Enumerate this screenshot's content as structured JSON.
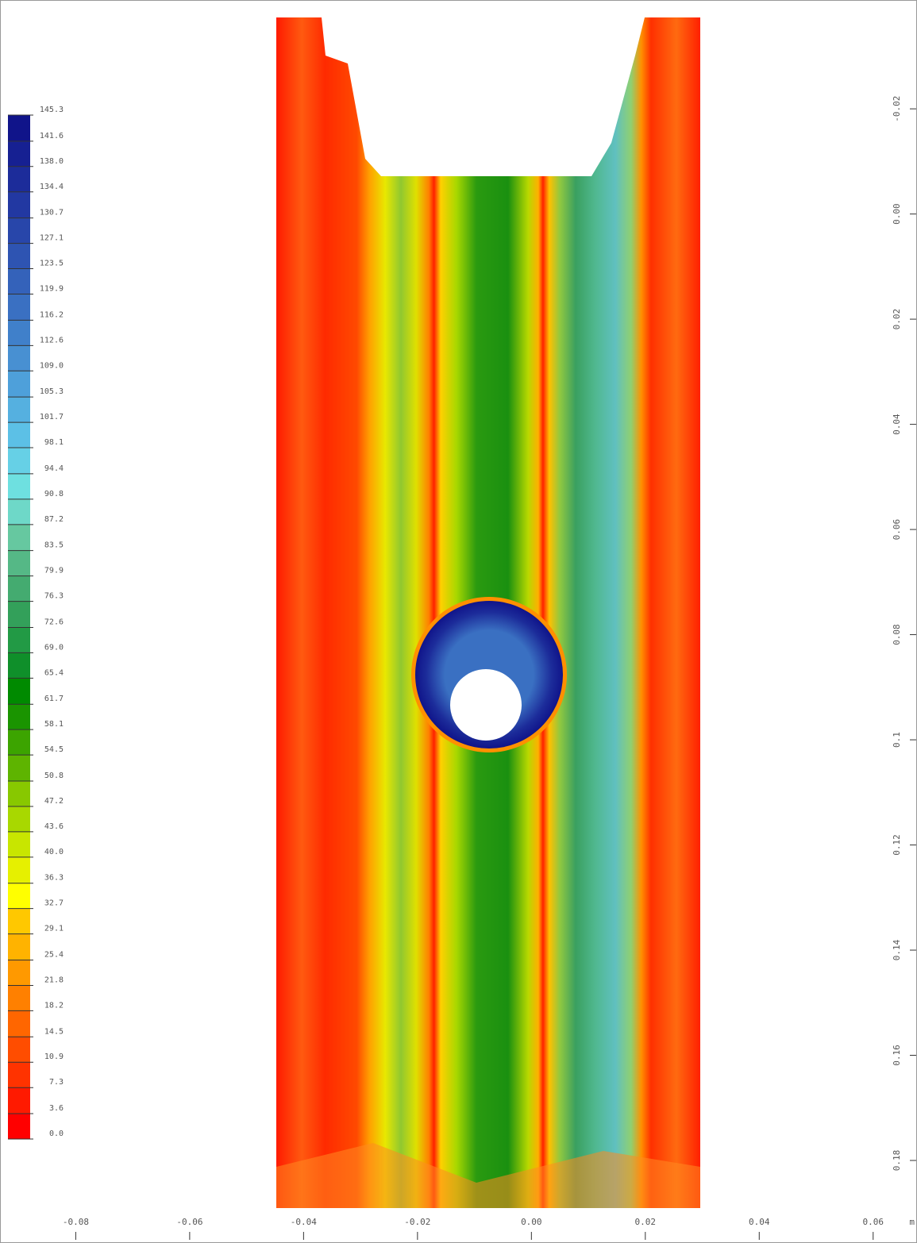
{
  "chart_data": {
    "type": "contour",
    "xlim": [
      -0.0933,
      0.0677
    ],
    "xticks": [
      -0.08,
      -0.06,
      -0.04,
      -0.02,
      {
        "value": 0,
        "label": "0.00"
      },
      0.02,
      0.04,
      0.06
    ],
    "x_unit": "m",
    "ylim": [
      -0.0407,
      0.1957
    ],
    "y_inverted": true,
    "yticks": [
      -0.02,
      {
        "value": 0,
        "label": "0.00"
      },
      0.02,
      0.04,
      0.06,
      0.08,
      0.1,
      0.12,
      0.14,
      0.16,
      0.18
    ],
    "clim": [
      0,
      145.3
    ],
    "cticks": [
      {
        "value": 0,
        "label": "0.0"
      },
      3.6,
      7.3,
      10.9,
      14.5,
      18.2,
      21.8,
      25.4,
      29.1,
      32.7,
      36.3,
      {
        "value": 40,
        "label": "40.0"
      },
      43.6,
      47.2,
      50.8,
      54.5,
      58.1,
      61.7,
      65.4,
      {
        "value": 69,
        "label": "69.0"
      },
      72.6,
      76.3,
      79.9,
      83.5,
      87.2,
      90.8,
      94.4,
      98.1,
      101.7,
      105.3,
      {
        "value": 109,
        "label": "109.0"
      },
      112.6,
      116.2,
      119.9,
      123.5,
      127.1,
      130.7,
      134.4,
      {
        "value": 138,
        "label": "138.0"
      },
      141.6,
      145.3
    ],
    "colors": [
      "#ff0000",
      "#ff1a00",
      "#ff3300",
      "#ff4d00",
      "#ff6600",
      "#ff8000",
      "#ff9900",
      "#ffb300",
      "#ffc800",
      "#ffff00",
      "#e6f000",
      "#c8e600",
      "#a8d800",
      "#88c800",
      "#5eb400",
      "#3ca400",
      "#1a9400",
      "#008a00",
      "#0f8f2a",
      "#229a45",
      "#33a05a",
      "#44ab70",
      "#55b886",
      "#66c8a0",
      "#6ed8c8",
      "#6ee0e0",
      "#66d0e6",
      "#5cc0e6",
      "#55b0e0",
      "#4ea0da",
      "#4890d2",
      "#4080ca",
      "#3a70c2",
      "#3462ba",
      "#2e54b2",
      "#2846aa",
      "#2238a2",
      "#1c2c9a",
      "#162092",
      "#10148a"
    ]
  }
}
